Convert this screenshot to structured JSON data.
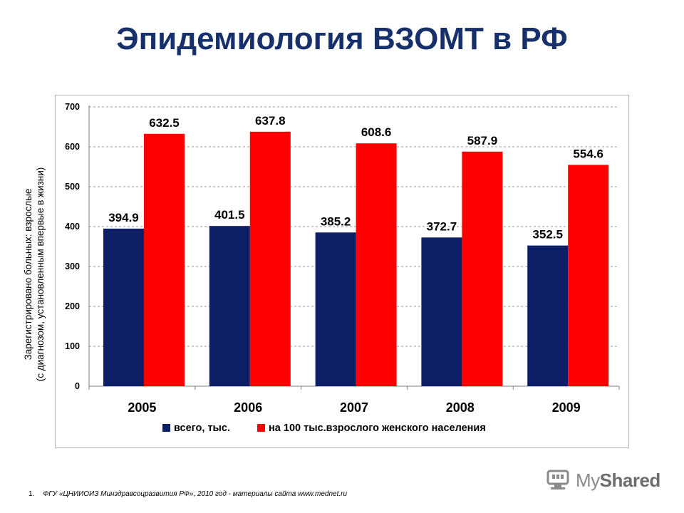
{
  "title": "Эпидемиология ВЗОМТ в РФ",
  "chart_data": {
    "type": "bar",
    "categories": [
      "2005",
      "2006",
      "2007",
      "2008",
      "2009"
    ],
    "series": [
      {
        "name": "всего, тыс.",
        "color": "#0d1f66",
        "values": [
          394.9,
          401.5,
          385.2,
          372.7,
          352.5
        ]
      },
      {
        "name": "на 100 тыс.взрослого женского населения",
        "color": "#ff0000",
        "values": [
          632.5,
          637.8,
          608.6,
          587.9,
          554.6
        ]
      }
    ],
    "ylabel_lines": [
      "Зарегистрировано больных: взрослые",
      "(с диагнозом, установленным впервые в жизни)"
    ],
    "ylim": [
      0,
      700
    ],
    "yticks": [
      0,
      100,
      200,
      300,
      400,
      500,
      600,
      700
    ],
    "grid": true,
    "legend_position": "bottom"
  },
  "footnote": {
    "number": "1.",
    "text": "ФГУ «ЦНИИОИЗ Минздравсоцразвития РФ», 2010 год - материалы сайта www.mednet.ru"
  },
  "watermark": {
    "icon": "mac-monitor-icon",
    "text_prefix": "My",
    "text_suffix": "Shared"
  }
}
